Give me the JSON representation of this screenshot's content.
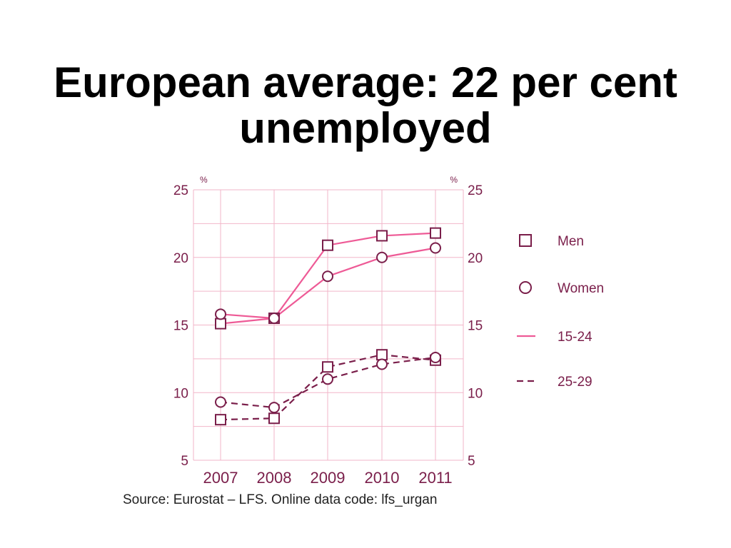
{
  "title": {
    "line1": "European average: 22 per cent",
    "line2": "unemployed"
  },
  "source": "Source: Eurostat – LFS. Online data code: lfs_urgan",
  "colors": {
    "grid": "#f2b6c9",
    "line_15_24": "#ee5a96",
    "line_25_29": "#7a1e4a",
    "marker": "#7a1e4a",
    "text": "#7a1e4a"
  },
  "chart_data": {
    "type": "line",
    "categories": [
      "2007",
      "2008",
      "2009",
      "2010",
      "2011"
    ],
    "ylim": [
      5,
      25
    ],
    "yticks": [
      "5",
      "10",
      "15",
      "20",
      "25"
    ],
    "unit_left": "%",
    "unit_right": "%",
    "grid": true,
    "legend_position": "right",
    "legend": [
      {
        "label": "Men",
        "symbol": "square"
      },
      {
        "label": "Women",
        "symbol": "circle"
      },
      {
        "label": "15-24",
        "symbol": "solid-line"
      },
      {
        "label": "25-29",
        "symbol": "dashed-line"
      }
    ],
    "series": [
      {
        "group": "15-24",
        "sex": "Men",
        "style": "solid",
        "marker": "square",
        "values": [
          15.1,
          15.5,
          20.9,
          21.6,
          21.8
        ]
      },
      {
        "group": "15-24",
        "sex": "Women",
        "style": "solid",
        "marker": "circle",
        "values": [
          15.8,
          15.5,
          18.6,
          20.0,
          20.7
        ]
      },
      {
        "group": "25-29",
        "sex": "Men",
        "style": "dashed",
        "marker": "square",
        "values": [
          8.0,
          8.1,
          11.9,
          12.8,
          12.4
        ]
      },
      {
        "group": "25-29",
        "sex": "Women",
        "style": "dashed",
        "marker": "circle",
        "values": [
          9.3,
          8.9,
          11.0,
          12.1,
          12.6
        ]
      }
    ]
  }
}
